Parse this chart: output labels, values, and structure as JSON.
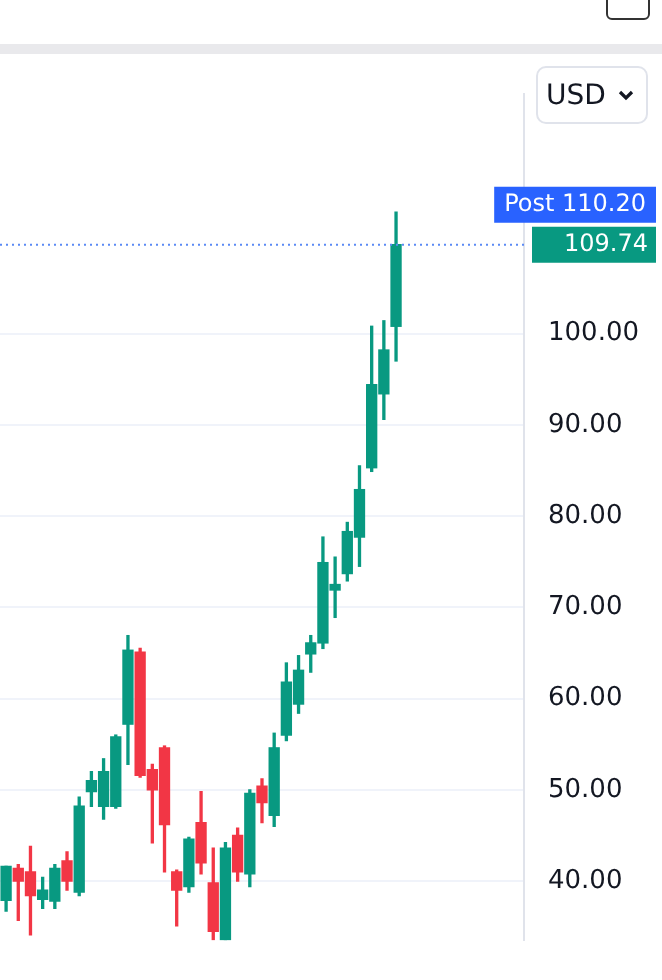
{
  "chart_data": {
    "type": "candlestick",
    "categories": [
      null,
      null,
      null,
      null,
      null,
      null,
      null,
      null,
      null,
      null,
      null,
      null,
      null,
      null,
      null,
      null,
      null,
      null,
      null,
      null,
      null,
      null,
      null,
      null,
      null,
      null,
      null,
      null,
      null,
      null,
      null,
      null,
      null,
      null,
      null,
      null,
      null,
      null,
      null,
      null,
      null,
      null,
      null
    ],
    "ohlc": [
      [
        37.9,
        41.6,
        36.7,
        41.6
      ],
      [
        41.4,
        41.8,
        35.7,
        40.0
      ],
      [
        41.0,
        43.8,
        34.1,
        38.4
      ],
      [
        38.0,
        40.4,
        37.0,
        39.0
      ],
      [
        37.8,
        41.8,
        37.0,
        41.4
      ],
      [
        42.2,
        43.2,
        39.0,
        40.0
      ],
      [
        38.8,
        49.2,
        38.4,
        48.2
      ],
      [
        49.8,
        52.0,
        48.2,
        51.0
      ],
      [
        48.2,
        53.4,
        46.8,
        52.0
      ],
      [
        48.2,
        56.0,
        48.0,
        55.8
      ],
      [
        57.2,
        66.9,
        52.8,
        65.3
      ],
      [
        65.1,
        65.5,
        51.4,
        51.6
      ],
      [
        52.2,
        52.8,
        44.2,
        50.0
      ],
      [
        54.6,
        54.8,
        41.0,
        46.2
      ],
      [
        41.0,
        41.2,
        35.1,
        39.0
      ],
      [
        39.4,
        44.8,
        38.8,
        44.6
      ],
      [
        46.4,
        49.8,
        40.8,
        42.0
      ],
      [
        39.8,
        43.6,
        33.6,
        34.5
      ],
      [
        33.6,
        44.2,
        33.6,
        43.6
      ],
      [
        45.0,
        45.8,
        40.0,
        41.0
      ],
      [
        40.8,
        50.0,
        39.4,
        49.6
      ],
      [
        50.4,
        51.2,
        46.4,
        48.6
      ],
      [
        47.2,
        56.2,
        46.0,
        54.6
      ],
      [
        56.0,
        63.9,
        55.4,
        61.8
      ],
      [
        59.4,
        64.7,
        58.4,
        63.1
      ],
      [
        64.9,
        66.9,
        62.9,
        66.1
      ],
      [
        66.1,
        77.7,
        65.5,
        74.9
      ],
      [
        71.9,
        75.5,
        68.9,
        72.5
      ],
      [
        73.7,
        79.3,
        72.9,
        78.3
      ],
      [
        77.7,
        85.5,
        74.5,
        82.9
      ],
      [
        85.3,
        100.8,
        84.9,
        94.4
      ],
      [
        93.4,
        101.4,
        90.6,
        98.2
      ],
      [
        100.8,
        113.3,
        97.0,
        109.74
      ],
      null,
      null,
      null,
      null,
      null,
      null,
      null,
      null,
      null,
      null
    ],
    "colors": [
      "#089981",
      "#f23645",
      "#f23645",
      "#089981",
      "#089981",
      "#f23645",
      "#089981",
      "#089981",
      "#089981",
      "#089981",
      "#089981",
      "#f23645",
      "#f23645",
      "#f23645",
      "#f23645",
      "#089981",
      "#f23645",
      "#f23645",
      "#089981",
      "#f23645",
      "#089981",
      "#f23645",
      "#089981",
      "#089981",
      "#089981",
      "#089981",
      "#089981",
      "#089981",
      "#089981",
      "#089981",
      "#089981",
      "#089981",
      "#089981",
      null,
      null,
      null,
      null,
      null,
      null,
      null,
      null,
      null,
      null
    ],
    "ylim": [
      33.5,
      126.3
    ],
    "yticks": [
      {
        "value": 40,
        "label": "40.00"
      },
      {
        "value": 50,
        "label": "50.00"
      },
      {
        "value": 60,
        "label": "60.00"
      },
      {
        "value": 70,
        "label": "70.00"
      },
      {
        "value": 80,
        "label": "80.00"
      },
      {
        "value": 90,
        "label": "90.00"
      },
      {
        "value": 100,
        "label": "100.00"
      }
    ],
    "tick_labels": "y",
    "grid": "y",
    "ref_lines": [
      {
        "axis": "y",
        "value": 109.74,
        "label": "109.74",
        "color": "#5b8af5",
        "line_style": "dotted"
      }
    ],
    "annotations": [
      "USD",
      "Post 110.20"
    ]
  }
}
